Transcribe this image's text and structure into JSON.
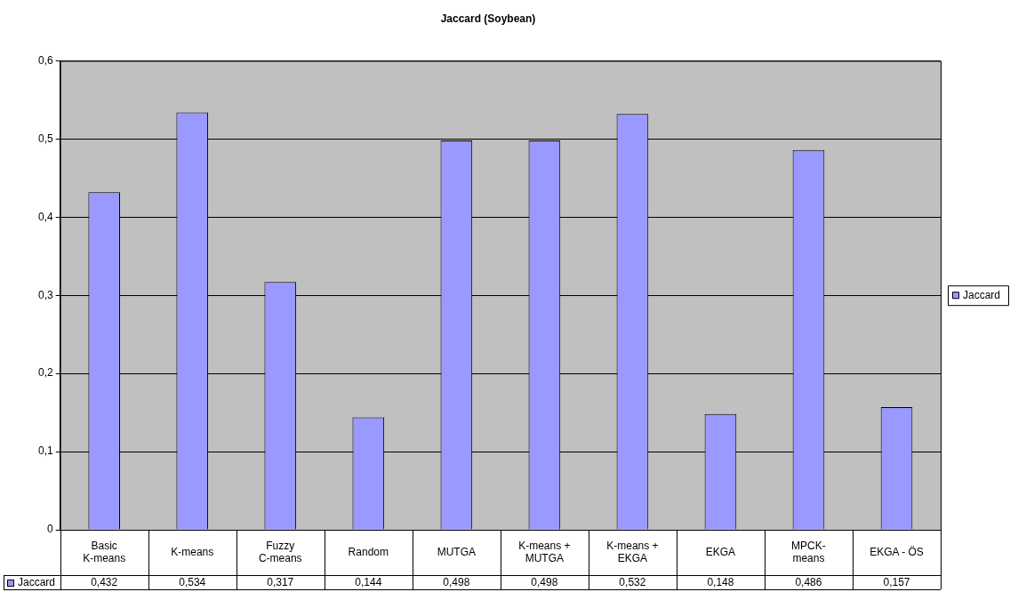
{
  "chart_data": {
    "type": "bar",
    "title": "Jaccard (Soybean)",
    "categories": [
      "Basic K-means",
      "K-means",
      "Fuzzy C-means",
      "Random",
      "MUTGA",
      "K-means + MUTGA",
      "K-means + EKGA",
      "EKGA",
      "MPCK-means",
      "EKGA - ÖS"
    ],
    "series": [
      {
        "name": "Jaccard",
        "color": "#9999ff",
        "values": [
          0.432,
          0.534,
          0.317,
          0.144,
          0.498,
          0.498,
          0.532,
          0.148,
          0.486,
          0.157
        ],
        "value_labels": [
          "0,432",
          "0,534",
          "0,317",
          "0,144",
          "0,498",
          "0,498",
          "0,532",
          "0,148",
          "0,486",
          "0,157"
        ]
      }
    ],
    "ylim": [
      0,
      0.6
    ],
    "yticks": [
      {
        "value": 0,
        "label": "0"
      },
      {
        "value": 0.1,
        "label": "0,1"
      },
      {
        "value": 0.2,
        "label": "0,2"
      },
      {
        "value": 0.3,
        "label": "0,3"
      },
      {
        "value": 0.4,
        "label": "0,4"
      },
      {
        "value": 0.5,
        "label": "0,5"
      },
      {
        "value": 0.6,
        "label": "0,6"
      }
    ],
    "grid": "y",
    "legend": "right"
  }
}
